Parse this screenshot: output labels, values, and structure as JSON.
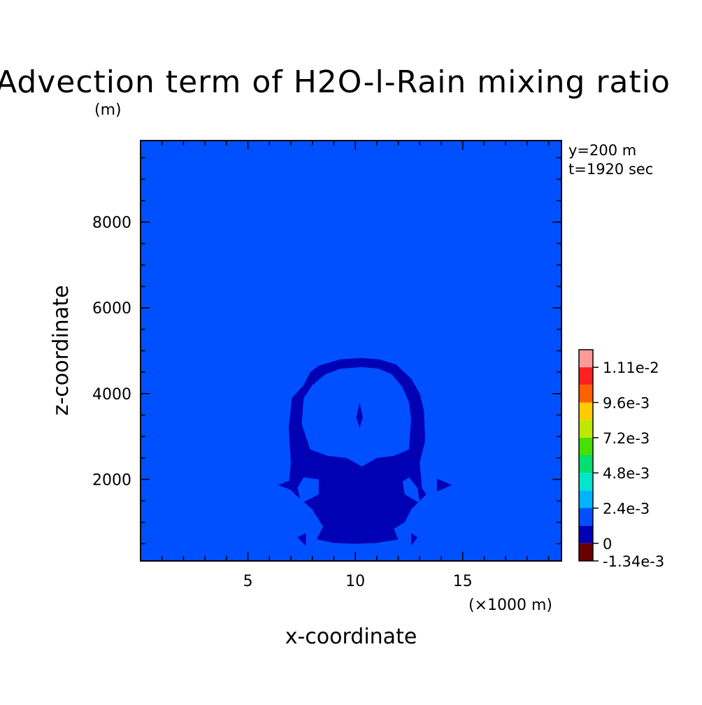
{
  "chart_data": {
    "type": "heatmap",
    "title": "Advection term of H2O-l-Rain mixing ratio",
    "title_units": "(m)",
    "xlabel": "x-coordinate",
    "ylabel": "z-coordinate",
    "x_units": "(×1000 m)",
    "xlim": [
      0,
      19.6
    ],
    "ylim": [
      100,
      9900
    ],
    "x_ticks": [
      5,
      10,
      15
    ],
    "y_ticks": [
      2000,
      4000,
      6000,
      8000
    ],
    "info": [
      "y=200 m",
      "t=1920 sec"
    ],
    "grid": false,
    "background_level_color": "#0050ff",
    "colorbar": {
      "position": "right",
      "labels": [
        "1.11e-2",
        "9.6e-3",
        "7.2e-3",
        "4.8e-3",
        "2.4e-3",
        "0",
        "-1.34e-3"
      ],
      "colors": [
        "#ff9a9a",
        "#ff2020",
        "#ff6000",
        "#ffcc00",
        "#bde800",
        "#45e000",
        "#00e070",
        "#00e6c8",
        "#00b4ff",
        "#0050ff",
        "#0000b4",
        "#6a0000"
      ]
    },
    "regions": [
      {
        "name": "negative-ring",
        "level": "-1.34e-3 to 0",
        "points": [
          [
            6.9,
            3200
          ],
          [
            7.05,
            3900
          ],
          [
            7.6,
            4200
          ],
          [
            7.9,
            4500
          ],
          [
            8.3,
            4650
          ],
          [
            9.3,
            4800
          ],
          [
            10.3,
            4830
          ],
          [
            11.1,
            4800
          ],
          [
            11.9,
            4680
          ],
          [
            12.6,
            4350
          ],
          [
            13.0,
            4000
          ],
          [
            13.2,
            3600
          ],
          [
            13.25,
            2900
          ],
          [
            13.0,
            2400
          ],
          [
            13.1,
            1800
          ],
          [
            13.3,
            1650
          ],
          [
            12.6,
            1300
          ],
          [
            12.3,
            1000
          ],
          [
            11.8,
            850
          ],
          [
            12.0,
            600
          ],
          [
            11.0,
            520
          ],
          [
            10.0,
            500
          ],
          [
            9.0,
            520
          ],
          [
            8.2,
            600
          ],
          [
            8.5,
            900
          ],
          [
            8.0,
            1300
          ],
          [
            7.2,
            1650
          ],
          [
            6.9,
            1800
          ],
          [
            7.0,
            2400
          ]
        ]
      },
      {
        "name": "negative-small-arrow-left",
        "level": "-1.34e-3 to 0",
        "points": [
          [
            6.4,
            1870
          ],
          [
            7.2,
            2020
          ],
          [
            7.2,
            1720
          ]
        ]
      },
      {
        "name": "negative-small-arrow-right",
        "level": "-1.34e-3 to 0",
        "points": [
          [
            13.8,
            2020
          ],
          [
            14.5,
            1870
          ],
          [
            13.8,
            1720
          ]
        ]
      },
      {
        "name": "negative-small-bottom-left",
        "level": "-1.34e-3 to 0",
        "points": [
          [
            7.3,
            650
          ],
          [
            7.7,
            750
          ],
          [
            7.7,
            450
          ]
        ]
      },
      {
        "name": "negative-small-bottom-right",
        "level": "-1.34e-3 to 0",
        "points": [
          [
            12.6,
            750
          ],
          [
            12.9,
            650
          ],
          [
            12.6,
            450
          ]
        ]
      }
    ],
    "holes": [
      {
        "name": "inner-positive-area",
        "points": [
          [
            7.5,
            3300
          ],
          [
            7.6,
            3900
          ],
          [
            8.0,
            4200
          ],
          [
            8.6,
            4450
          ],
          [
            9.3,
            4580
          ],
          [
            10.3,
            4620
          ],
          [
            11.1,
            4580
          ],
          [
            11.7,
            4450
          ],
          [
            12.2,
            4150
          ],
          [
            12.5,
            3800
          ],
          [
            12.6,
            3400
          ],
          [
            12.5,
            2700
          ],
          [
            11.8,
            2550
          ],
          [
            11.0,
            2500
          ],
          [
            10.3,
            2300
          ],
          [
            9.6,
            2500
          ],
          [
            8.7,
            2550
          ],
          [
            7.9,
            2700
          ]
        ]
      },
      {
        "name": "inner-left-gap",
        "points": [
          [
            7.5,
            1450
          ],
          [
            8.3,
            1650
          ],
          [
            8.3,
            2000
          ],
          [
            7.6,
            2050
          ],
          [
            7.3,
            1800
          ]
        ]
      },
      {
        "name": "inner-right-gap",
        "points": [
          [
            12.3,
            1650
          ],
          [
            13.0,
            1450
          ],
          [
            12.9,
            1800
          ],
          [
            12.5,
            2050
          ],
          [
            12.2,
            1950
          ]
        ]
      }
    ],
    "inner_blob": [
      [
        10.05,
        3450
      ],
      [
        10.2,
        3800
      ],
      [
        10.35,
        3450
      ],
      [
        10.2,
        3200
      ]
    ]
  }
}
